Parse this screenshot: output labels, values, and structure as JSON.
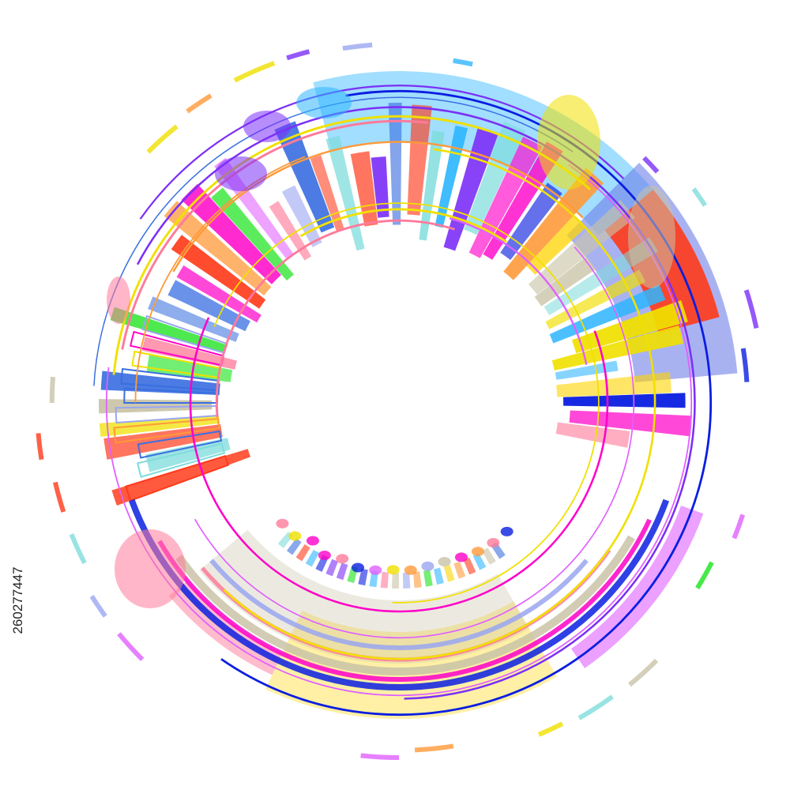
{
  "image_id": "260277447"
}
